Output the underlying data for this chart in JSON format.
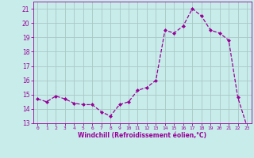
{
  "hours": [
    0,
    1,
    2,
    3,
    4,
    5,
    6,
    7,
    8,
    9,
    10,
    11,
    12,
    13,
    14,
    15,
    16,
    17,
    18,
    19,
    20,
    21,
    22,
    23
  ],
  "values": [
    14.7,
    14.5,
    14.9,
    14.7,
    14.4,
    14.3,
    14.3,
    13.8,
    13.5,
    14.3,
    14.5,
    15.3,
    15.5,
    16.0,
    19.5,
    19.3,
    19.8,
    21.0,
    20.5,
    19.5,
    19.3,
    18.8,
    14.8,
    12.8
  ],
  "line_color": "#990099",
  "marker": "D",
  "marker_size": 2,
  "bg_color": "#c8ecea",
  "grid_color": "#a8c8c6",
  "xlabel": "Windchill (Refroidissement éolien,°C)",
  "ylim": [
    13,
    21.5
  ],
  "yticks": [
    13,
    14,
    15,
    16,
    17,
    18,
    19,
    20,
    21
  ],
  "tick_color": "#990099",
  "label_color": "#990099",
  "axis_color": "#990099"
}
